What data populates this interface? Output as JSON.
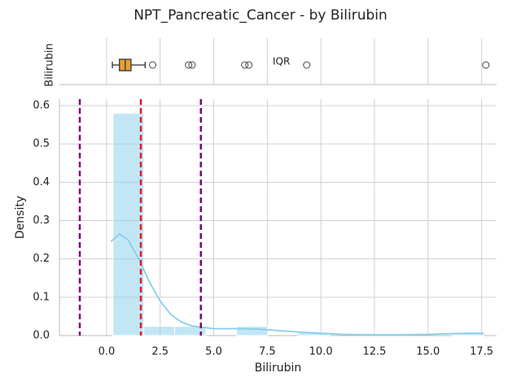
{
  "title": "NPT_Pancreatic_Cancer - by Bilirubin",
  "chart_data": [
    {
      "type": "box",
      "ylabel": "Bilirubin",
      "annotation": "IQR",
      "whisker_low": 0.27,
      "q1": 0.6,
      "median": 0.87,
      "q3": 1.14,
      "whisker_high": 1.8,
      "outliers": [
        2.15,
        3.83,
        3.99,
        6.45,
        6.64,
        9.34,
        17.7
      ],
      "color": "#e8a030",
      "xlim": [
        -2.2,
        18.2
      ],
      "xticks": [
        {
          "value": 0,
          "label": "0.0"
        },
        2.5,
        {
          "value": 5,
          "label": "5.0"
        },
        7.5,
        {
          "value": 10,
          "label": "10.0"
        },
        12.5,
        {
          "value": 15,
          "label": "15.0"
        },
        17.5
      ]
    },
    {
      "type": "histogram",
      "xlabel": "Bilirubin",
      "ylabel": "Density",
      "bins": [
        0.3,
        1.74,
        3.18,
        4.63,
        6.07,
        7.51,
        8.95,
        10.39,
        11.83,
        13.28,
        14.72,
        16.16,
        17.6
      ],
      "values": [
        0.58,
        0.024,
        0.024,
        0,
        0.024,
        0,
        0.008,
        0,
        0,
        0,
        0,
        0.008
      ],
      "color": "#87ceeb",
      "kde": {
        "x": [
          0.2,
          0.6,
          1.0,
          1.5,
          2,
          2.5,
          3,
          3.5,
          4,
          5,
          6,
          7,
          8,
          9,
          10,
          11,
          12,
          13,
          14,
          15,
          16,
          17,
          17.6
        ],
        "y": [
          0.245,
          0.265,
          0.25,
          0.2,
          0.14,
          0.09,
          0.055,
          0.035,
          0.025,
          0.018,
          0.018,
          0.017,
          0.013,
          0.009,
          0.006,
          0.003,
          0.002,
          0.002,
          0.002,
          0.003,
          0.005,
          0.006,
          0.006
        ]
      },
      "lines": [
        {
          "value": -1.25,
          "color": "#800080"
        },
        {
          "value": 1.6,
          "color": "#e41a1c"
        },
        {
          "value": 4.4,
          "color": "#800080"
        }
      ],
      "xlim": [
        -2.2,
        18.2
      ],
      "ylim": [
        0,
        0.617
      ],
      "xticks": [
        {
          "value": 0,
          "label": "0.0"
        },
        2.5,
        {
          "value": 5,
          "label": "5.0"
        },
        7.5,
        {
          "value": 10,
          "label": "10.0"
        },
        12.5,
        {
          "value": 15,
          "label": "15.0"
        },
        17.5
      ],
      "yticks": [
        {
          "value": 0,
          "label": "0.0"
        },
        0.1,
        0.2,
        0.3,
        0.4,
        0.5,
        0.6
      ],
      "grid": true
    }
  ]
}
